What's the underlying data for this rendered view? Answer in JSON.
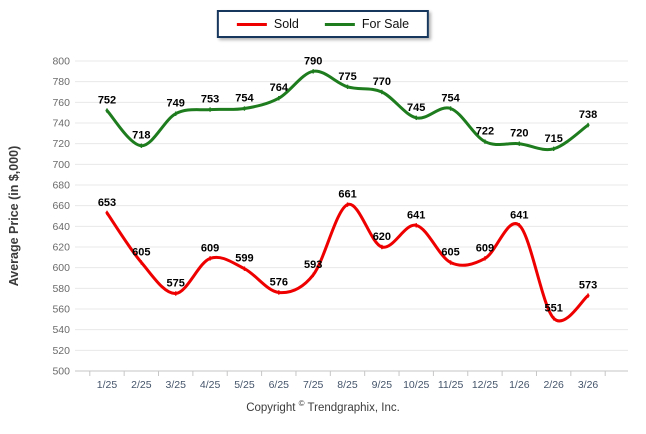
{
  "chart_data": {
    "type": "line",
    "title": "",
    "xlabel": "",
    "ylabel": "Average Price (in $,000)",
    "categories": [
      "1/25",
      "2/25",
      "3/25",
      "4/25",
      "5/25",
      "6/25",
      "7/25",
      "8/25",
      "9/25",
      "10/25",
      "11/25",
      "12/25",
      "1/26",
      "2/26",
      "3/26"
    ],
    "series": [
      {
        "name": "For Sale",
        "color": "#1e7c1e",
        "values": [
          752,
          718,
          749,
          753,
          754,
          764,
          790,
          775,
          770,
          745,
          754,
          722,
          720,
          715,
          738
        ]
      },
      {
        "name": "Sold",
        "color": "#ee0000",
        "values": [
          653,
          605,
          575,
          609,
          599,
          576,
          593,
          661,
          620,
          641,
          605,
          609,
          641,
          551,
          573
        ]
      }
    ],
    "ylim": [
      500,
      800
    ],
    "ytick_step": 20,
    "grid": "horizontal",
    "legend_position": "top-center",
    "smooth": true,
    "data_labels": true
  },
  "legend": {
    "items": [
      {
        "label": "Sold",
        "color": "#ee0000"
      },
      {
        "label": "For Sale",
        "color": "#1e7c1e"
      }
    ]
  },
  "footer": {
    "prefix": "Copyright",
    "symbol": "©",
    "company": "Trendgraphix, Inc."
  },
  "colors": {
    "grid": "#e8e8e8",
    "axis": "#c6c6c6",
    "y_tick_text": "#6a6a6a",
    "x_tick_text": "#44546a",
    "data_label_text": "#000000",
    "axis_title_text": "#3b3b3b",
    "legend_border": "#17375d"
  }
}
